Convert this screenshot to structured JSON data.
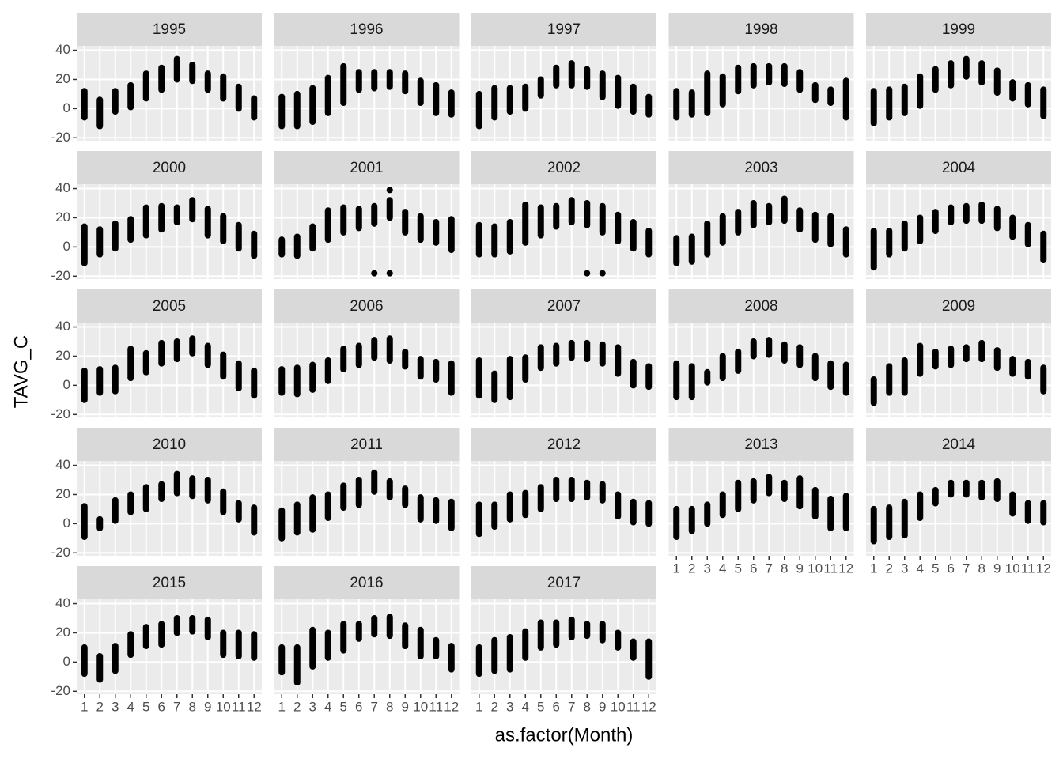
{
  "chart_data": {
    "type": "scatter",
    "x_label": "as.factor(Month)",
    "y_label": "TAVG_C",
    "categories": [
      "1",
      "2",
      "3",
      "4",
      "5",
      "6",
      "7",
      "8",
      "9",
      "10",
      "11",
      "12"
    ],
    "ylim": [
      -22,
      43
    ],
    "yticks": [
      -20,
      0,
      20,
      40
    ],
    "grid": true,
    "color": "#000000",
    "facets": [
      {
        "title": "1995",
        "min": [
          -6,
          -12,
          -2,
          1,
          7,
          13,
          20,
          19,
          13,
          7,
          0,
          -6
        ],
        "max": [
          12,
          6,
          12,
          16,
          24,
          28,
          34,
          30,
          24,
          22,
          15,
          7
        ]
      },
      {
        "title": "1996",
        "min": [
          -12,
          -12,
          -9,
          -3,
          4,
          13,
          14,
          15,
          12,
          4,
          -3,
          -4
        ],
        "max": [
          8,
          10,
          14,
          21,
          29,
          25,
          25,
          25,
          24,
          19,
          16,
          11
        ]
      },
      {
        "title": "1997",
        "min": [
          -12,
          -6,
          -2,
          0,
          9,
          16,
          16,
          15,
          8,
          2,
          -2,
          -4
        ],
        "max": [
          10,
          14,
          14,
          15,
          20,
          28,
          31,
          27,
          24,
          21,
          15,
          8
        ]
      },
      {
        "title": "1998",
        "min": [
          -6,
          -4,
          -3,
          3,
          12,
          16,
          18,
          17,
          13,
          6,
          4,
          -6
        ],
        "max": [
          12,
          11,
          24,
          22,
          28,
          29,
          29,
          29,
          25,
          16,
          13,
          19
        ]
      },
      {
        "title": "1999",
        "min": [
          -10,
          -6,
          -3,
          2,
          13,
          16,
          22,
          18,
          11,
          7,
          3,
          -5
        ],
        "max": [
          12,
          13,
          15,
          22,
          27,
          31,
          34,
          31,
          26,
          18,
          16,
          13
        ]
      },
      {
        "title": "2000",
        "min": [
          -11,
          -5,
          -1,
          5,
          8,
          12,
          17,
          19,
          8,
          4,
          -1,
          -6
        ],
        "max": [
          14,
          12,
          16,
          19,
          27,
          28,
          27,
          32,
          26,
          21,
          15,
          9
        ]
      },
      {
        "title": "2001",
        "min": [
          -5,
          -6,
          -1,
          5,
          10,
          13,
          16,
          20,
          10,
          5,
          3,
          -2
        ],
        "max": [
          5,
          7,
          14,
          25,
          27,
          26,
          28,
          32,
          24,
          21,
          17,
          19
        ],
        "points": [
          {
            "x": 7,
            "y": -18
          },
          {
            "x": 8,
            "y": -18
          },
          {
            "x": 8,
            "y": 39
          }
        ]
      },
      {
        "title": "2002",
        "min": [
          -5,
          -5,
          -3,
          3,
          8,
          14,
          17,
          15,
          10,
          4,
          -1,
          -5
        ],
        "max": [
          15,
          14,
          17,
          29,
          27,
          28,
          32,
          30,
          28,
          22,
          17,
          11
        ],
        "points": [
          {
            "x": 8,
            "y": -18
          },
          {
            "x": 9,
            "y": -18
          }
        ]
      },
      {
        "title": "2003",
        "min": [
          -11,
          -10,
          -5,
          3,
          10,
          15,
          17,
          18,
          12,
          5,
          2,
          -5
        ],
        "max": [
          6,
          7,
          16,
          21,
          24,
          30,
          28,
          33,
          25,
          22,
          21,
          12
        ]
      },
      {
        "title": "2004",
        "min": [
          -14,
          -5,
          -1,
          4,
          11,
          17,
          18,
          18,
          13,
          7,
          2,
          -9
        ],
        "max": [
          11,
          11,
          16,
          20,
          24,
          27,
          28,
          29,
          26,
          20,
          15,
          9
        ]
      },
      {
        "title": "2005",
        "min": [
          -10,
          -5,
          -4,
          5,
          9,
          15,
          18,
          22,
          14,
          6,
          -2,
          -7
        ],
        "max": [
          10,
          11,
          12,
          25,
          22,
          29,
          30,
          32,
          27,
          21,
          15,
          10
        ]
      },
      {
        "title": "2006",
        "min": [
          -5,
          -6,
          -3,
          3,
          11,
          14,
          19,
          17,
          13,
          6,
          4,
          -5
        ],
        "max": [
          11,
          12,
          14,
          17,
          25,
          27,
          31,
          32,
          23,
          18,
          16,
          15
        ]
      },
      {
        "title": "2007",
        "min": [
          -7,
          -10,
          -8,
          4,
          12,
          15,
          19,
          18,
          15,
          8,
          0,
          -1
        ],
        "max": [
          17,
          8,
          18,
          19,
          26,
          27,
          29,
          29,
          28,
          26,
          16,
          13
        ]
      },
      {
        "title": "2008",
        "min": [
          -8,
          -8,
          2,
          5,
          10,
          20,
          21,
          17,
          14,
          5,
          -1,
          -5
        ],
        "max": [
          15,
          13,
          9,
          20,
          23,
          30,
          31,
          28,
          26,
          20,
          15,
          14
        ]
      },
      {
        "title": "2009",
        "min": [
          -12,
          -5,
          -5,
          8,
          13,
          14,
          18,
          18,
          12,
          8,
          6,
          -4
        ],
        "max": [
          4,
          13,
          17,
          27,
          23,
          25,
          26,
          29,
          24,
          18,
          16,
          12
        ]
      },
      {
        "title": "2010",
        "min": [
          -9,
          -3,
          2,
          8,
          10,
          17,
          21,
          19,
          16,
          8,
          3,
          -6
        ],
        "max": [
          12,
          3,
          16,
          20,
          25,
          27,
          34,
          31,
          30,
          22,
          14,
          11
        ]
      },
      {
        "title": "2011",
        "min": [
          -10,
          -6,
          -4,
          4,
          11,
          13,
          22,
          18,
          13,
          3,
          2,
          -3
        ],
        "max": [
          9,
          13,
          18,
          20,
          26,
          30,
          35,
          29,
          24,
          18,
          16,
          15
        ]
      },
      {
        "title": "2012",
        "min": [
          -7,
          -2,
          3,
          6,
          10,
          17,
          17,
          18,
          16,
          5,
          1,
          0
        ],
        "max": [
          13,
          13,
          20,
          21,
          25,
          30,
          30,
          28,
          27,
          20,
          15,
          14
        ]
      },
      {
        "title": "2013",
        "min": [
          -9,
          -5,
          0,
          6,
          10,
          16,
          21,
          17,
          12,
          5,
          -3,
          -3
        ],
        "max": [
          10,
          10,
          13,
          20,
          28,
          29,
          32,
          28,
          31,
          23,
          17,
          19
        ]
      },
      {
        "title": "2014",
        "min": [
          -12,
          -9,
          -8,
          4,
          14,
          20,
          20,
          18,
          17,
          7,
          2,
          1
        ],
        "max": [
          10,
          11,
          15,
          20,
          23,
          28,
          28,
          28,
          29,
          20,
          14,
          14
        ]
      },
      {
        "title": "2015",
        "min": [
          -8,
          -12,
          -6,
          5,
          11,
          12,
          20,
          21,
          17,
          5,
          4,
          3
        ],
        "max": [
          10,
          4,
          11,
          19,
          24,
          26,
          30,
          30,
          29,
          20,
          20,
          19
        ]
      },
      {
        "title": "2016",
        "min": [
          -7,
          -14,
          -3,
          3,
          8,
          16,
          19,
          18,
          11,
          4,
          4,
          -5
        ],
        "max": [
          10,
          10,
          22,
          20,
          26,
          26,
          30,
          31,
          25,
          22,
          15,
          11
        ]
      },
      {
        "title": "2017",
        "min": [
          -8,
          -6,
          -5,
          3,
          10,
          12,
          17,
          18,
          15,
          10,
          3,
          -10
        ],
        "max": [
          10,
          15,
          17,
          21,
          27,
          27,
          29,
          26,
          26,
          20,
          14,
          14
        ]
      }
    ]
  }
}
